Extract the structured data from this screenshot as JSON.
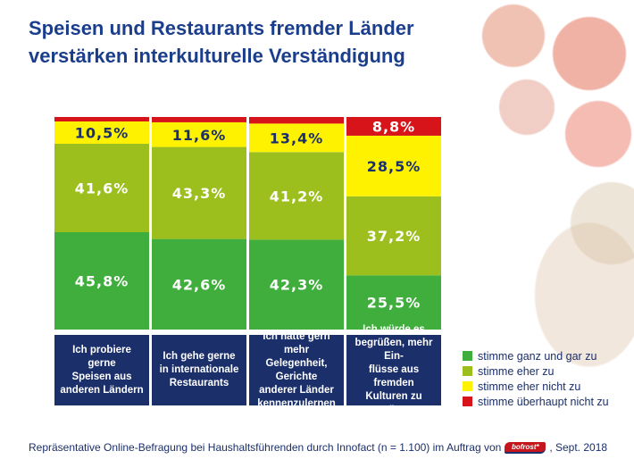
{
  "title_line1": "Speisen und Restaurants fremder Länder",
  "title_line2": "verstärken interkulturelle Verständigung",
  "chart_data": {
    "type": "bar",
    "stacked": true,
    "categories": [
      "Ich probiere gerne\nSpeisen aus\nanderen Ländern",
      "Ich gehe gerne\nin internationale\nRestaurants",
      "Ich hätte gern\nmehr Gelegenheit,\nGerichte\nanderer Länder\nkennenzulernen",
      "Ich würde es\nbegrüßen, mehr Ein-\nflüsse aus fremden\nKulturen zu spüren"
    ],
    "series": [
      {
        "name": "stimme ganz und gar zu",
        "color": "#3fae3c",
        "values": [
          45.8,
          42.6,
          42.3,
          25.5
        ],
        "labels": [
          "45,8%",
          "42,6%",
          "42,3%",
          "25,5%"
        ]
      },
      {
        "name": "stimme eher zu",
        "color": "#9cbf1e",
        "values": [
          41.6,
          43.3,
          41.2,
          37.2
        ],
        "labels": [
          "41,6%",
          "43,3%",
          "41,2%",
          "37,2%"
        ]
      },
      {
        "name": "stimme eher nicht zu",
        "color": "#fff200",
        "values": [
          10.5,
          11.6,
          13.4,
          28.5
        ],
        "labels": [
          "10,5%",
          "11,6%",
          "13,4%",
          "28,5%"
        ]
      },
      {
        "name": "stimme überhaupt nicht zu",
        "color": "#d7141a",
        "values": [
          2.1,
          2.5,
          3.1,
          8.8
        ],
        "labels": [
          "",
          "",
          "",
          "8,8%"
        ]
      }
    ],
    "label_colors": [
      "#ffffff",
      "#ffffff",
      "#1b2f6a",
      "#ffffff"
    ],
    "legend_position": "right",
    "grid": false
  },
  "footer": {
    "text_before": "Repräsentative Online-Befragung bei Haushaltsführenden durch Innofact (n = 1.100) im Auftrag von",
    "logo": "bofrost*",
    "text_after": ", Sept. 2018"
  }
}
